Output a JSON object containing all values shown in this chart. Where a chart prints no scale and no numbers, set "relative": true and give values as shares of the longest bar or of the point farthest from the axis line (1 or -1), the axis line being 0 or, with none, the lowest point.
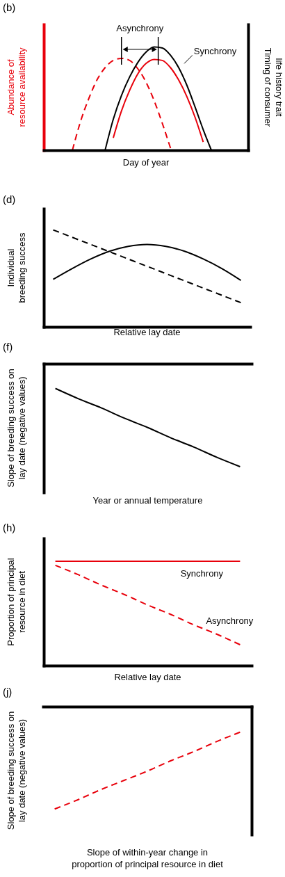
{
  "chart_data": [
    {
      "type": "line",
      "title": "(b)",
      "xlabel": "Day of year",
      "ylabel": "Abundance of resource availability",
      "y2label": "Timing of consumer life history trait",
      "relative": true,
      "categories": [
        null,
        null,
        null,
        null,
        null,
        null,
        null,
        null,
        null,
        null,
        null,
        null,
        null,
        null,
        null,
        null,
        null,
        null,
        null,
        null,
        null,
        null,
        null,
        null,
        null
      ],
      "series": [
        {
          "color": "#e8000b",
          "line_style": "dashed",
          "values": [
            null,
            null,
            null,
            0,
            0.28,
            0.5,
            0.68,
            0.8,
            0.87,
            0.89,
            0.87,
            0.79,
            0.66,
            0.48,
            0.26,
            0.02,
            null,
            null,
            null,
            null,
            null,
            null,
            null,
            null,
            null
          ]
        },
        {
          "color": "#e8000b",
          "line_style": "solid",
          "values": [
            null,
            null,
            null,
            null,
            null,
            null,
            null,
            null,
            0.12,
            0.38,
            0.58,
            0.74,
            0.84,
            0.88,
            0.87,
            0.8,
            0.68,
            0.52,
            0.32,
            0.08,
            null,
            null,
            null,
            null,
            null
          ]
        },
        {
          "color": "#000000",
          "line_style": "solid",
          "values": [
            null,
            null,
            null,
            null,
            null,
            null,
            null,
            0,
            0.3,
            0.53,
            0.71,
            0.85,
            0.95,
            1,
            0.99,
            0.92,
            0.8,
            0.63,
            0.42,
            0.2,
            0,
            null,
            null,
            null,
            null
          ]
        }
      ],
      "annotations": [
        "Asynchrony",
        "Synchrony"
      ]
    },
    {
      "type": "line",
      "title": "(d)",
      "xlabel": "Relative lay date",
      "ylabel": "Individual breeding success",
      "relative": true,
      "categories": [
        null,
        null,
        null,
        null,
        null,
        null,
        null,
        null,
        null,
        null,
        null
      ],
      "series": [
        {
          "color": "#000000",
          "line_style": "solid",
          "values": [
            0.49,
            0.6,
            0.7,
            0.78,
            0.83,
            0.85,
            0.83,
            0.78,
            0.7,
            0.6,
            0.48
          ]
        },
        {
          "color": "#000000",
          "line_style": "dashed",
          "values": [
            1,
            0.925,
            0.85,
            0.775,
            0.7,
            0.625,
            0.55,
            0.475,
            0.4,
            0.325,
            0.25
          ]
        }
      ]
    },
    {
      "type": "line",
      "title": "(f)",
      "xlabel": "Year or annual temperature",
      "ylabel": "Slope of breeding success on lay date (negative values)",
      "relative": true,
      "categories": [
        null,
        null,
        null,
        null,
        null,
        null,
        null,
        null,
        null
      ],
      "series": [
        {
          "color": "#000000",
          "line_style": "solid",
          "values": [
            -0.24,
            -0.34,
            -0.43,
            -0.53,
            -0.62,
            -0.72,
            -0.81,
            -0.91,
            -1
          ]
        }
      ]
    },
    {
      "type": "line",
      "title": "(h)",
      "xlabel": "Relative lay date",
      "ylabel": "Proportion of principal resource in diet",
      "relative": true,
      "categories": [
        null,
        null,
        null,
        null,
        null,
        null,
        null,
        null,
        null
      ],
      "series": [
        {
          "name": "Synchrony",
          "color": "#e8000b",
          "line_style": "solid",
          "values": [
            1,
            1,
            1,
            1,
            1,
            1,
            1,
            1,
            1
          ]
        },
        {
          "name": "Asynchrony",
          "color": "#e8000b",
          "line_style": "dashed",
          "values": [
            0.96,
            0.87,
            0.77,
            0.68,
            0.58,
            0.49,
            0.39,
            0.3,
            0.2
          ]
        }
      ]
    },
    {
      "type": "line",
      "title": "(j)",
      "xlabel": "Slope of within-year change in proportion of principal resource in diet",
      "ylabel": "Slope of breeding success on lay date (negative values)",
      "relative": true,
      "categories": [
        null,
        null,
        null,
        null,
        null,
        null,
        null,
        null,
        null
      ],
      "series": [
        {
          "color": "#e8000b",
          "line_style": "dashed",
          "values": [
            -1,
            -0.91,
            -0.81,
            -0.72,
            -0.63,
            -0.53,
            -0.44,
            -0.34,
            -0.25
          ]
        }
      ]
    }
  ]
}
